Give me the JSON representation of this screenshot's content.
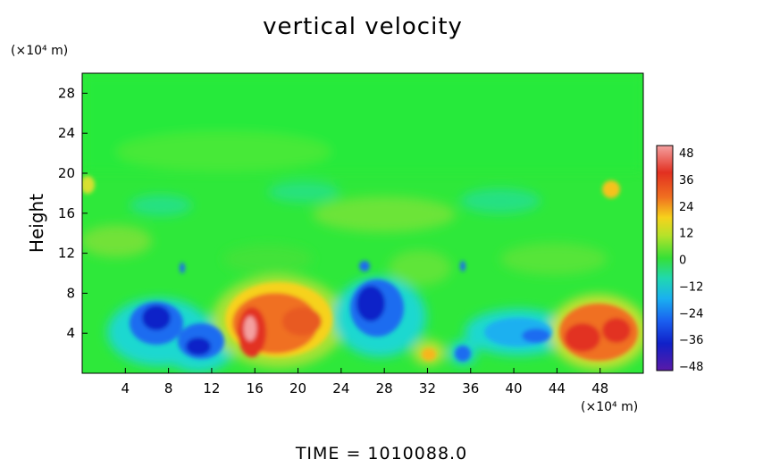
{
  "chart_data": {
    "type": "heatmap",
    "title": "vertical velocity",
    "xlabel": "",
    "ylabel": "Height",
    "x_unit": "(×10⁴ m)",
    "y_unit": "(×10⁴ m)",
    "xlim": [
      0,
      52
    ],
    "ylim": [
      0,
      30
    ],
    "x_ticks": [
      4,
      8,
      12,
      16,
      20,
      24,
      28,
      32,
      36,
      40,
      44,
      48
    ],
    "y_ticks": [
      4,
      8,
      12,
      16,
      20,
      24,
      28
    ],
    "colorbar": {
      "ticks": [
        48,
        36,
        24,
        12,
        0,
        -12,
        -24,
        -36,
        -48
      ],
      "range": [
        -48,
        48
      ],
      "colors": [
        "#f4a0a0",
        "#e23020",
        "#f07020",
        "#f6d21c",
        "#b6e22a",
        "#36e036",
        "#20d8b0",
        "#1ab0f0",
        "#1a5ff0",
        "#1020c8",
        "#5a1aa8"
      ]
    },
    "features": [
      {
        "x": 7,
        "y": 5.5,
        "value": -34
      },
      {
        "x": 11.5,
        "y": 3,
        "value": -36
      },
      {
        "x": 15.5,
        "y": 4.5,
        "value": 44
      },
      {
        "x": 19,
        "y": 5.5,
        "value": 28
      },
      {
        "x": 27,
        "y": 6.5,
        "value": -32
      },
      {
        "x": 30.5,
        "y": 2,
        "value": 14
      },
      {
        "x": 35,
        "y": 2,
        "value": -24
      },
      {
        "x": 41,
        "y": 3.8,
        "value": -20
      },
      {
        "x": 46,
        "y": 3.8,
        "value": 36
      },
      {
        "x": 49.5,
        "y": 18,
        "value": 16
      },
      {
        "x": 0.5,
        "y": 19,
        "value": 14
      }
    ],
    "footer": "TIME = 1010088.0"
  }
}
